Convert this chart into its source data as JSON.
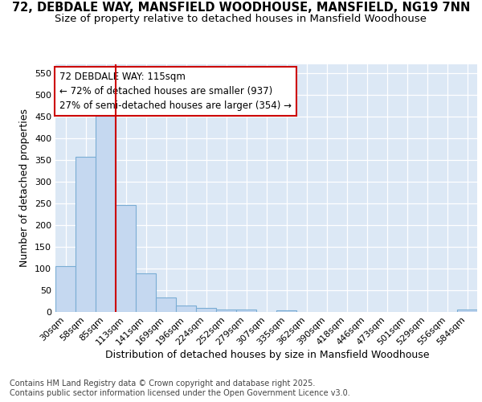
{
  "title_line1": "72, DEBDALE WAY, MANSFIELD WOODHOUSE, MANSFIELD, NG19 7NN",
  "title_line2": "Size of property relative to detached houses in Mansfield Woodhouse",
  "xlabel": "Distribution of detached houses by size in Mansfield Woodhouse",
  "ylabel": "Number of detached properties",
  "categories": [
    "30sqm",
    "58sqm",
    "85sqm",
    "113sqm",
    "141sqm",
    "169sqm",
    "196sqm",
    "224sqm",
    "252sqm",
    "279sqm",
    "307sqm",
    "335sqm",
    "362sqm",
    "390sqm",
    "418sqm",
    "446sqm",
    "473sqm",
    "501sqm",
    "529sqm",
    "556sqm",
    "584sqm"
  ],
  "values": [
    105,
    357,
    457,
    246,
    88,
    32,
    13,
    9,
    5,
    5,
    0,
    3,
    0,
    0,
    0,
    0,
    0,
    0,
    0,
    0,
    4
  ],
  "bar_color": "#c5d8f0",
  "bar_edge_color": "#7aadd4",
  "highlight_line_color": "#cc0000",
  "highlight_line_index": 2,
  "annotation_text_line1": "72 DEBDALE WAY: 115sqm",
  "annotation_text_line2": "← 72% of detached houses are smaller (937)",
  "annotation_text_line3": "27% of semi-detached houses are larger (354) →",
  "annotation_box_facecolor": "#ffffff",
  "annotation_box_edgecolor": "#cc0000",
  "ylim": [
    0,
    570
  ],
  "yticks": [
    0,
    50,
    100,
    150,
    200,
    250,
    300,
    350,
    400,
    450,
    500,
    550
  ],
  "figure_facecolor": "#ffffff",
  "plot_facecolor": "#dce8f5",
  "grid_color": "#ffffff",
  "footer_line1": "Contains HM Land Registry data © Crown copyright and database right 2025.",
  "footer_line2": "Contains public sector information licensed under the Open Government Licence v3.0.",
  "title_fontsize": 10.5,
  "subtitle_fontsize": 9.5,
  "axis_label_fontsize": 9,
  "tick_fontsize": 8,
  "annotation_fontsize": 8.5,
  "footer_fontsize": 7
}
